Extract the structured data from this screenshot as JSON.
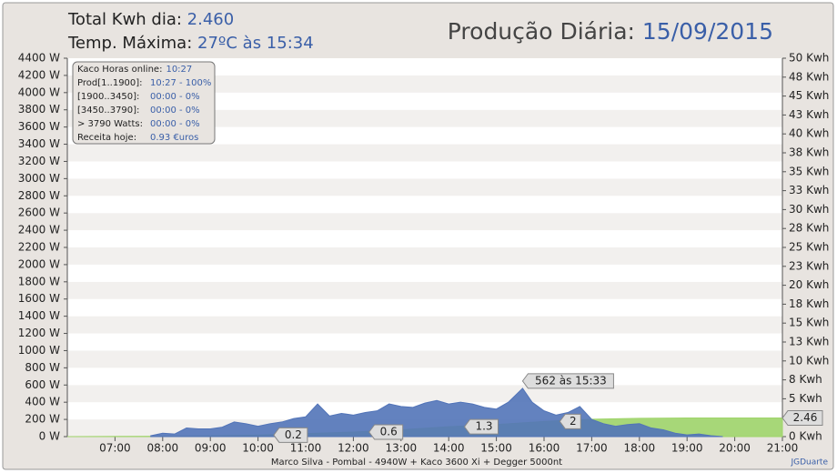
{
  "header": {
    "total_label": "Total Kwh dia:",
    "total_value": "2.460",
    "temp_label": "Temp. Máxima:",
    "temp_value": "27ºC às 15:34",
    "title": "Produção Diária:",
    "date": "15/09/2015"
  },
  "info": {
    "rows": [
      {
        "label": "Kaco Horas online:",
        "value": "10:27"
      },
      {
        "label": "Prod[1..1900]:",
        "value": "10:27 - 100%"
      },
      {
        "label": "[1900..3450]:",
        "value": "00:00 - 0%"
      },
      {
        "label": "[3450..3790]:",
        "value": "00:00 - 0%"
      },
      {
        "label": "> 3790 Watts:",
        "value": "00:00 - 0%"
      },
      {
        "label": "Receita hoje:",
        "value": "0.93 €uros"
      }
    ]
  },
  "footer": {
    "text": "Marco Silva - Pombal - 4940W + Kaco 3600 Xi + Degger 5000nt",
    "credit": "JGDuarte"
  },
  "chart_data": {
    "type": "area",
    "grid": true,
    "xlim": [
      6,
      21
    ],
    "xticks": [
      {
        "value": 7,
        "label": "07:00"
      },
      {
        "value": 8,
        "label": "08:00"
      },
      {
        "value": 9,
        "label": "09:00"
      },
      {
        "value": 10,
        "label": "10:00"
      },
      {
        "value": 11,
        "label": "11:00"
      },
      {
        "value": 12,
        "label": "12:00"
      },
      {
        "value": 13,
        "label": "13:00"
      },
      {
        "value": 14,
        "label": "14:00"
      },
      {
        "value": 15,
        "label": "15:00"
      },
      {
        "value": 16,
        "label": "16:00"
      },
      {
        "value": 17,
        "label": "17:00"
      },
      {
        "value": 18,
        "label": "18:00"
      },
      {
        "value": 19,
        "label": "19:00"
      },
      {
        "value": 20,
        "label": "20:00"
      },
      {
        "value": 21,
        "label": "21:00"
      }
    ],
    "ylim": [
      0,
      4400
    ],
    "yticks": [
      {
        "value": 0,
        "label": "0 W"
      },
      {
        "value": 200,
        "label": "200 W"
      },
      {
        "value": 400,
        "label": "400 W"
      },
      {
        "value": 600,
        "label": "600 W"
      },
      {
        "value": 800,
        "label": "800 W"
      },
      {
        "value": 1000,
        "label": "1000 W"
      },
      {
        "value": 1200,
        "label": "1200 W"
      },
      {
        "value": 1400,
        "label": "1400 W"
      },
      {
        "value": 1600,
        "label": "1600 W"
      },
      {
        "value": 1800,
        "label": "1800 W"
      },
      {
        "value": 2000,
        "label": "2000 W"
      },
      {
        "value": 2200,
        "label": "2200 W"
      },
      {
        "value": 2400,
        "label": "2400 W"
      },
      {
        "value": 2600,
        "label": "2600 W"
      },
      {
        "value": 2800,
        "label": "2800 W"
      },
      {
        "value": 3000,
        "label": "3000 W"
      },
      {
        "value": 3200,
        "label": "3200 W"
      },
      {
        "value": 3400,
        "label": "3400 W"
      },
      {
        "value": 3600,
        "label": "3600 W"
      },
      {
        "value": 3800,
        "label": "3800 W"
      },
      {
        "value": 4000,
        "label": "4000 W"
      },
      {
        "value": 4200,
        "label": "4200 W"
      },
      {
        "value": 4400,
        "label": "4400 W"
      }
    ],
    "y2lim": [
      0,
      50
    ],
    "y2ticks": [
      {
        "value": 0,
        "label": "0 Kwh"
      },
      {
        "value": 2.5,
        "label": "3 Kwh"
      },
      {
        "value": 5,
        "label": "5 Kwh"
      },
      {
        "value": 7.5,
        "label": "8 Kwh"
      },
      {
        "value": 10,
        "label": "10 Kwh"
      },
      {
        "value": 12.5,
        "label": "13 Kwh"
      },
      {
        "value": 15,
        "label": "15 Kwh"
      },
      {
        "value": 17.5,
        "label": "18 Kwh"
      },
      {
        "value": 20,
        "label": "20 Kwh"
      },
      {
        "value": 22.5,
        "label": "23 Kwh"
      },
      {
        "value": 25,
        "label": "25 Kwh"
      },
      {
        "value": 27.5,
        "label": "28 Kwh"
      },
      {
        "value": 30,
        "label": "30 Kwh"
      },
      {
        "value": 32.5,
        "label": "33 Kwh"
      },
      {
        "value": 35,
        "label": "35 Kwh"
      },
      {
        "value": 37.5,
        "label": "38 Kwh"
      },
      {
        "value": 40,
        "label": "40 Kwh"
      },
      {
        "value": 42.5,
        "label": "43 Kwh"
      },
      {
        "value": 45,
        "label": "45 Kwh"
      },
      {
        "value": 47.5,
        "label": "48 Kwh"
      },
      {
        "value": 50,
        "label": "50 Kwh"
      }
    ],
    "series": [
      {
        "color": "#9fd46a",
        "axis": "y2",
        "x": [
          6,
          8,
          9,
          10,
          11,
          12,
          13,
          14,
          15,
          16,
          17,
          18,
          19,
          21
        ],
        "values": [
          0,
          0.05,
          0.1,
          0.2,
          0.4,
          0.6,
          0.9,
          1.3,
          1.6,
          2.0,
          2.3,
          2.42,
          2.46,
          2.46
        ]
      },
      {
        "color": "#5274b8",
        "x": [
          7.75,
          8,
          8.25,
          8.5,
          8.75,
          9,
          9.25,
          9.5,
          9.75,
          10,
          10.25,
          10.5,
          10.75,
          11,
          11.25,
          11.5,
          11.75,
          12,
          12.25,
          12.5,
          12.75,
          13,
          13.25,
          13.5,
          13.75,
          14,
          14.25,
          14.5,
          14.75,
          15,
          15.25,
          15.55,
          15.75,
          16,
          16.25,
          16.5,
          16.75,
          17,
          17.25,
          17.5,
          17.75,
          18,
          18.25,
          18.5,
          18.75,
          19,
          19.25,
          19.5,
          19.75
        ],
        "values": [
          10,
          40,
          30,
          100,
          90,
          90,
          110,
          170,
          150,
          120,
          150,
          170,
          210,
          230,
          380,
          240,
          270,
          250,
          280,
          300,
          380,
          350,
          340,
          390,
          420,
          380,
          400,
          380,
          340,
          320,
          400,
          562,
          400,
          300,
          250,
          280,
          350,
          200,
          150,
          120,
          140,
          150,
          100,
          80,
          40,
          20,
          30,
          10,
          0
        ]
      }
    ],
    "annotations": [
      {
        "x": 10.33,
        "axis": "y2",
        "value": 0.2
      },
      {
        "x": 12.33,
        "axis": "y2",
        "value": 0.6
      },
      {
        "x": 14.33,
        "axis": "y2",
        "value": 1.3
      },
      {
        "x": 16.33,
        "axis": "y2",
        "value": 2.0
      },
      {
        "x": 21,
        "axis": "y2",
        "value": 2.46
      },
      {
        "x": 15.55,
        "value": 562,
        "label": "562 às 15:33"
      }
    ]
  }
}
